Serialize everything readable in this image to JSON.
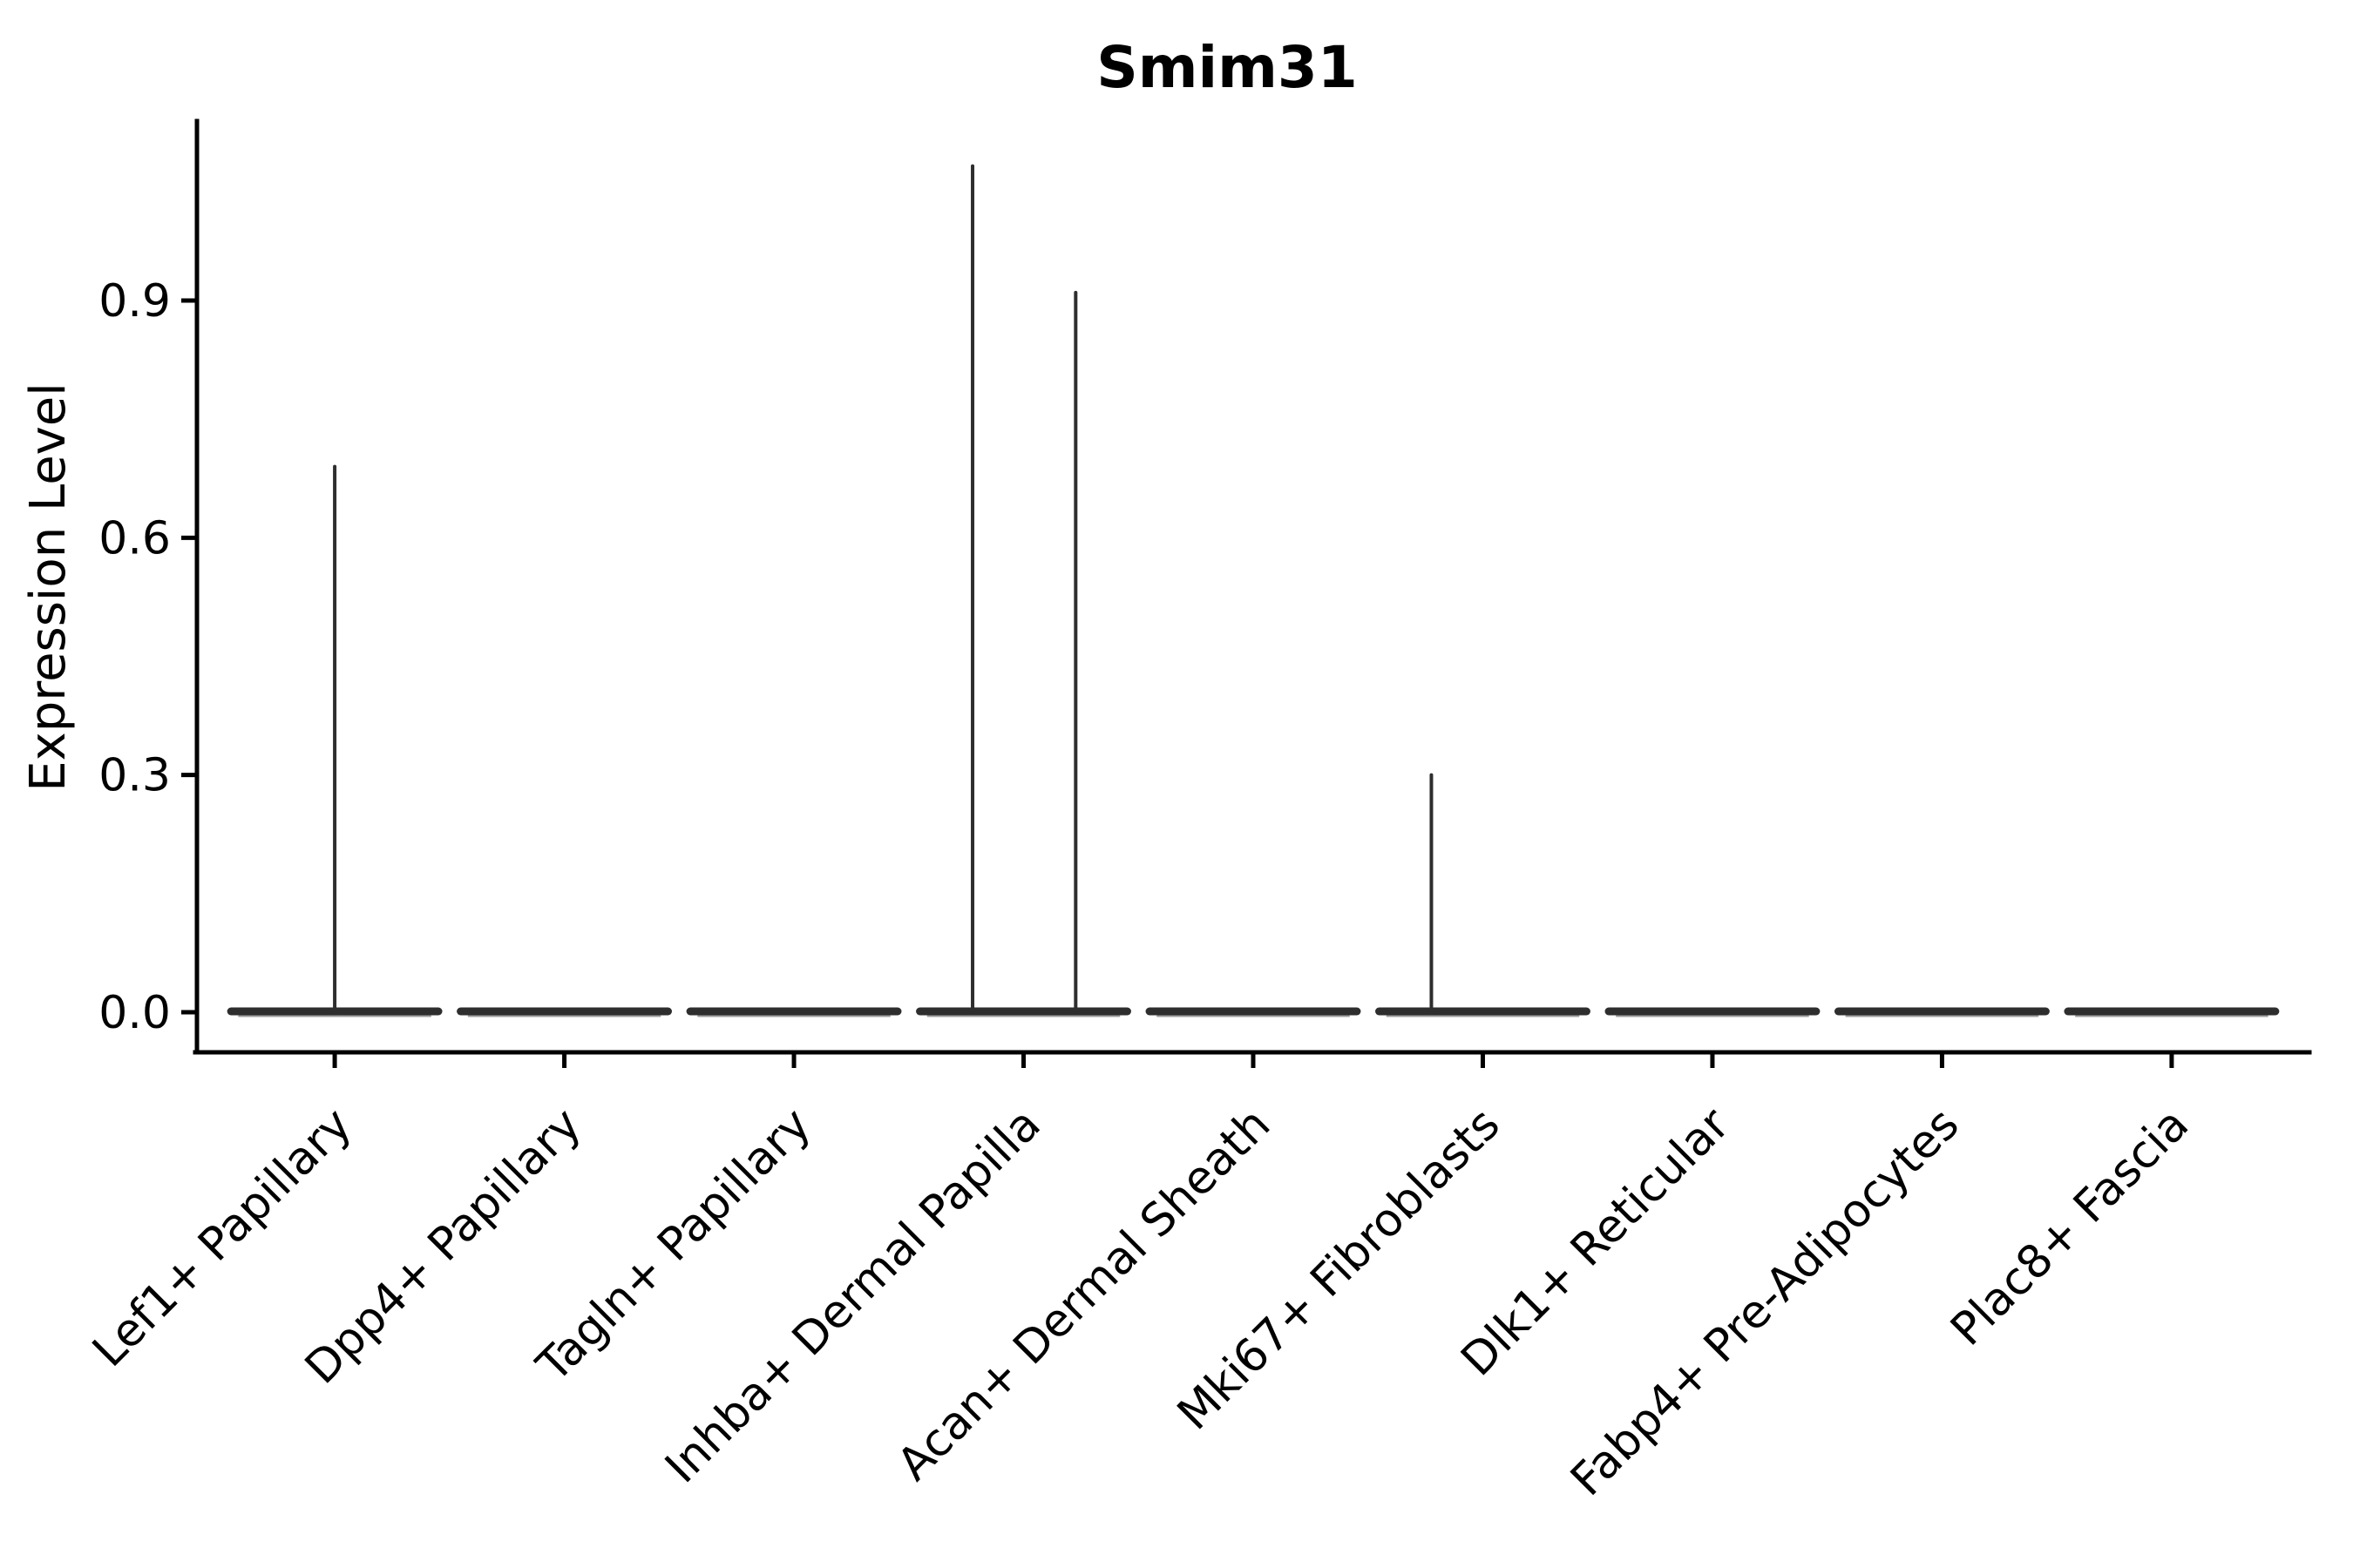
{
  "figure": {
    "title": "Smim31"
  },
  "y_axis": {
    "label": "Expression Level",
    "tick_labels": [
      "0.0",
      "0.3",
      "0.6",
      "0.9"
    ]
  },
  "x_axis": {
    "label": ""
  },
  "chart_data": {
    "type": "violin",
    "title": "Smim31",
    "xlabel": "",
    "ylabel": "Expression Level",
    "categories": [
      "Lef1+ Papillary",
      "Dpp4+ Papillary",
      "Tagln+ Papillary",
      "Inhba+ Dermal Papilla",
      "Acan+ Dermal Sheath",
      "Mki67+ Fibroblasts",
      "Dlk1+ Reticular",
      "Fabp4+ Pre-Adipocytes",
      "Plac8+ Fascia"
    ],
    "yticks": [
      0,
      0.3,
      0.6,
      0.9
    ],
    "ytick_labels": [
      "0.0",
      "0.3",
      "0.6",
      "0.9"
    ],
    "ylim": [
      0,
      1.13
    ],
    "grid": false,
    "legend_position": "none",
    "ink_color": "#000000",
    "violin_color": "#2e2e2e",
    "violin_edge_soft_color": "#9e9e9e",
    "violins": [
      {
        "category": "Lef1+ Papillary",
        "baseline_value": 0,
        "body_width_frac": 0.903,
        "spikes": [
          {
            "offset_frac": 0.0,
            "value": 0.69
          }
        ]
      },
      {
        "category": "Dpp4+ Papillary",
        "baseline_value": 0,
        "body_width_frac": 0.903,
        "spikes": []
      },
      {
        "category": "Tagln+ Papillary",
        "baseline_value": 0,
        "body_width_frac": 0.903,
        "spikes": []
      },
      {
        "category": "Inhba+ Dermal Papilla",
        "baseline_value": 0,
        "body_width_frac": 0.903,
        "spikes": [
          {
            "offset_frac": -0.222,
            "value": 1.07
          },
          {
            "offset_frac": 0.227,
            "value": 0.91
          }
        ]
      },
      {
        "category": "Acan+ Dermal Sheath",
        "baseline_value": 0,
        "body_width_frac": 0.903,
        "spikes": []
      },
      {
        "category": "Mki67+ Fibroblasts",
        "baseline_value": 0,
        "body_width_frac": 0.903,
        "spikes": [
          {
            "offset_frac": -0.224,
            "value": 0.3
          }
        ]
      },
      {
        "category": "Dlk1+ Reticular",
        "baseline_value": 0,
        "body_width_frac": 0.903,
        "spikes": []
      },
      {
        "category": "Fabp4+ Pre-Adipocytes",
        "baseline_value": 0,
        "body_width_frac": 0.903,
        "spikes": []
      },
      {
        "category": "Plac8+ Fascia",
        "baseline_value": 0,
        "body_width_frac": 0.903,
        "spikes": []
      }
    ]
  }
}
